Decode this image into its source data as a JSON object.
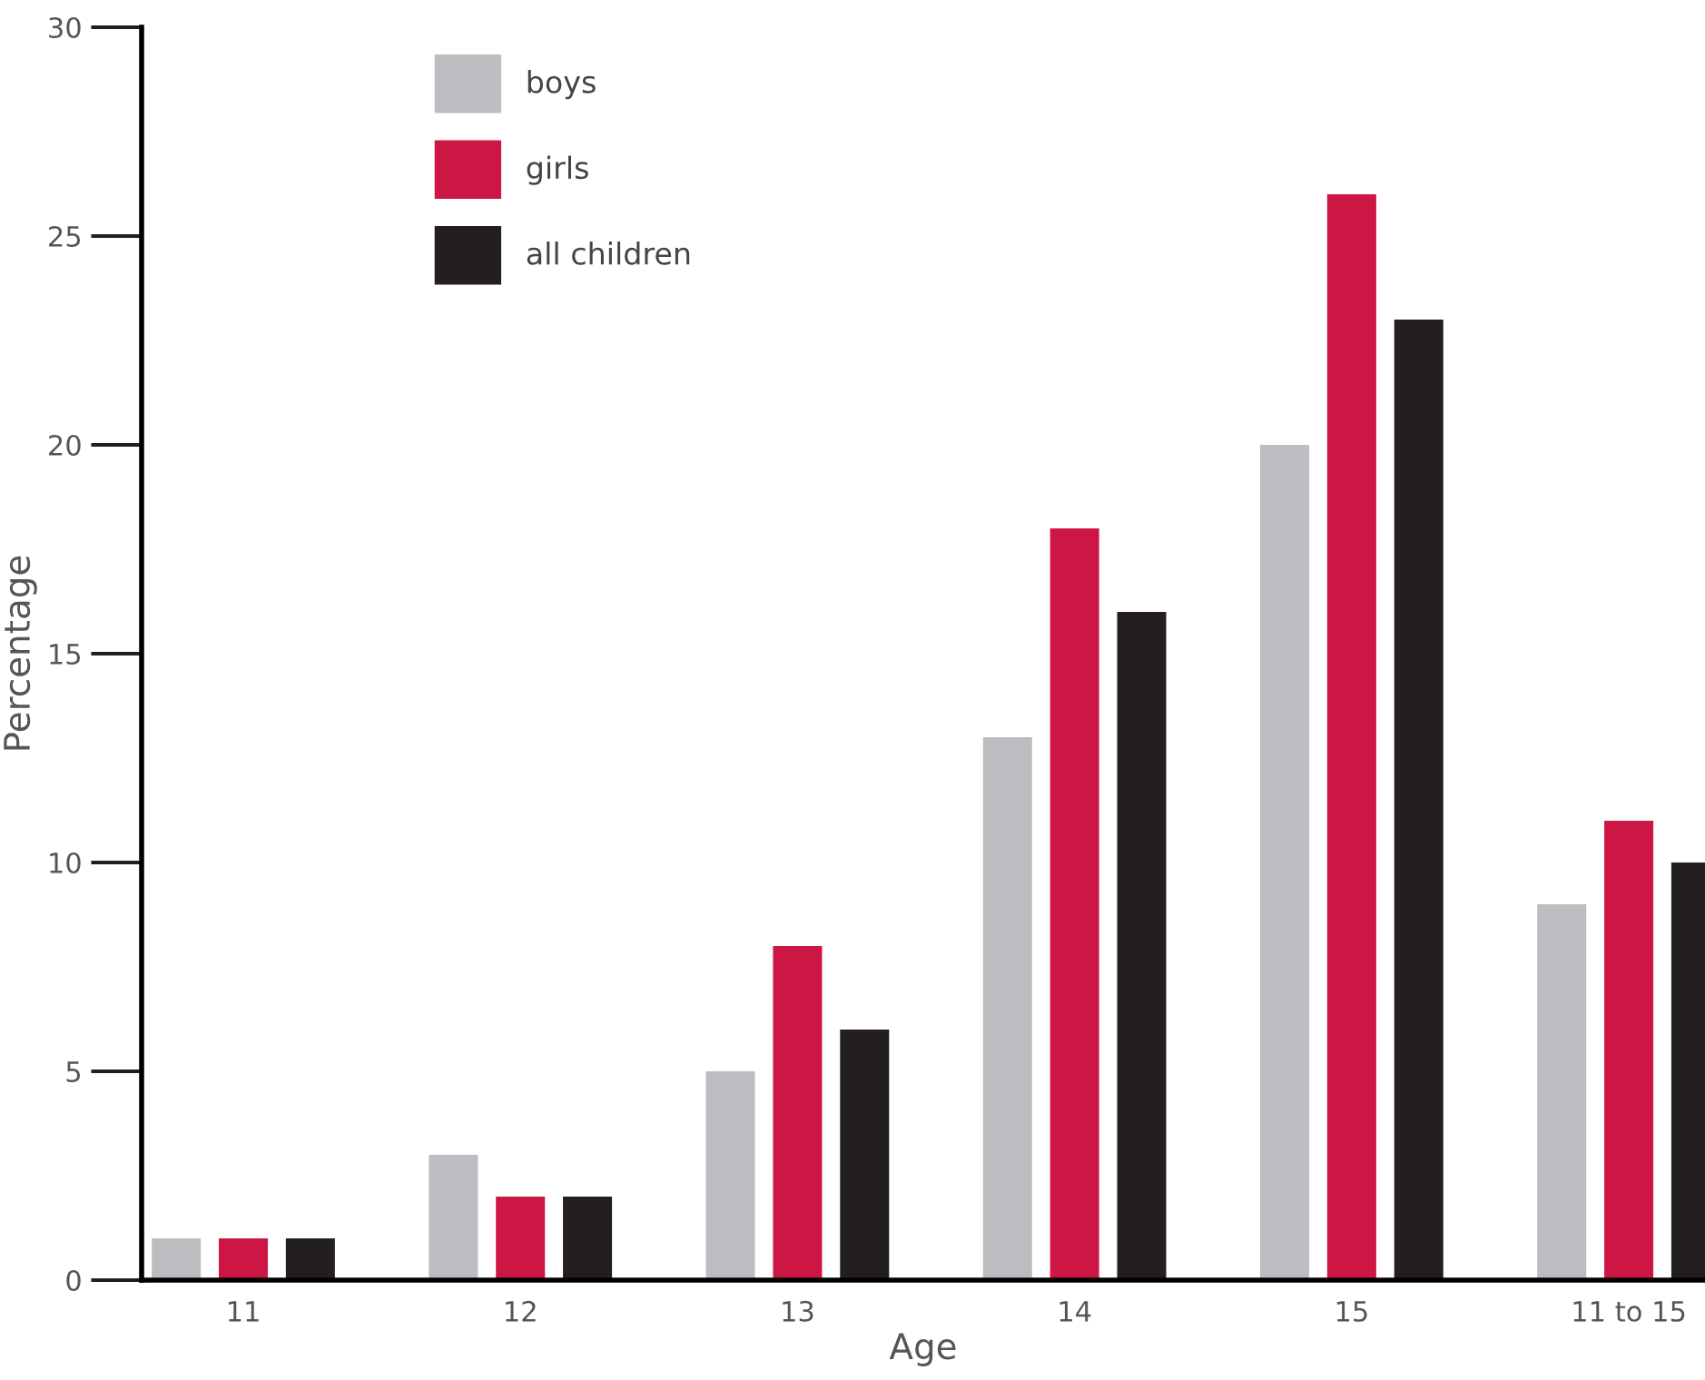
{
  "chart_data": {
    "type": "bar",
    "xlabel": "Age",
    "ylabel": "Percentage",
    "categories": [
      "11",
      "12",
      "13",
      "14",
      "15",
      "11 to 15"
    ],
    "series": [
      {
        "name": "boys",
        "color": "#bcbdc0",
        "values": [
          1,
          3,
          5,
          13,
          20,
          9
        ]
      },
      {
        "name": "girls",
        "color": "#cc1744",
        "values": [
          1,
          2,
          8,
          18,
          26,
          11
        ]
      },
      {
        "name": "all children",
        "color": "#231f20",
        "values": [
          1,
          2,
          6,
          16,
          23,
          10
        ]
      }
    ],
    "ylim": [
      0,
      30
    ],
    "yticks": [
      0,
      5,
      10,
      15,
      20,
      25,
      30
    ],
    "grid": false,
    "legend": "top left"
  }
}
